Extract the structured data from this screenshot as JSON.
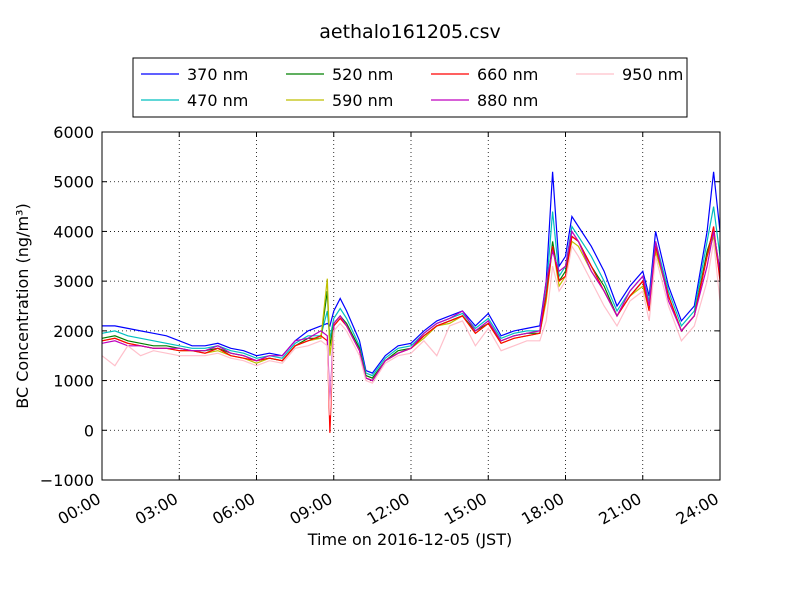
{
  "chart_data": {
    "type": "line",
    "title": "aethalo161205.csv",
    "xlabel": "Time on 2016-12-05 (JST)",
    "ylabel": "BC Concentration (ng/m³)",
    "x": [
      0,
      0.5,
      1,
      1.5,
      2,
      2.5,
      3,
      3.5,
      4,
      4.5,
      5,
      5.5,
      6,
      6.5,
      7,
      7.5,
      8,
      8.5,
      8.75,
      8.85,
      9,
      9.25,
      9.5,
      10,
      10.25,
      10.5,
      11,
      11.5,
      12,
      12.5,
      13,
      13.5,
      14,
      14.5,
      15,
      15.5,
      16,
      16.5,
      17,
      17.25,
      17.5,
      17.75,
      18,
      18.25,
      18.5,
      19,
      19.5,
      20,
      20.5,
      21,
      21.25,
      21.5,
      22,
      22.5,
      23,
      23.5,
      23.75,
      24
    ],
    "xlim": [
      0,
      24
    ],
    "xticks": [
      {
        "value": 0,
        "label": "00:00"
      },
      {
        "value": 3,
        "label": "03:00"
      },
      {
        "value": 6,
        "label": "06:00"
      },
      {
        "value": 9,
        "label": "09:00"
      },
      {
        "value": 12,
        "label": "12:00"
      },
      {
        "value": 15,
        "label": "15:00"
      },
      {
        "value": 18,
        "label": "18:00"
      },
      {
        "value": 21,
        "label": "21:00"
      },
      {
        "value": 24,
        "label": "24:00"
      }
    ],
    "ylim": [
      -1000,
      6000
    ],
    "yticks": [
      {
        "value": -1000,
        "label": "−1000"
      },
      0,
      1000,
      2000,
      3000,
      4000,
      5000,
      6000
    ],
    "grid": true,
    "legend": "upper center",
    "series": [
      {
        "name": "370 nm",
        "color": "#0000ff",
        "values": [
          2100,
          2100,
          2050,
          2000,
          1950,
          1900,
          1800,
          1700,
          1700,
          1750,
          1650,
          1600,
          1500,
          1550,
          1500,
          1800,
          2000,
          2100,
          2150,
          2100,
          2400,
          2650,
          2400,
          1800,
          1200,
          1150,
          1500,
          1700,
          1750,
          2000,
          2200,
          2300,
          2400,
          2100,
          2350,
          1900,
          2000,
          2050,
          2100,
          3000,
          5200,
          3300,
          3500,
          4300,
          4100,
          3700,
          3200,
          2500,
          2900,
          3200,
          2700,
          4000,
          2900,
          2200,
          2500,
          4000,
          5200,
          4000
        ]
      },
      {
        "name": "470 nm",
        "color": "#00bfbf",
        "values": [
          1950,
          2000,
          1900,
          1850,
          1800,
          1750,
          1700,
          1650,
          1650,
          1700,
          1600,
          1550,
          1450,
          1500,
          1450,
          1750,
          1900,
          1900,
          2400,
          1850,
          2250,
          2450,
          2250,
          1700,
          1150,
          1100,
          1450,
          1650,
          1700,
          1950,
          2150,
          2250,
          2350,
          2050,
          2250,
          1850,
          1950,
          2000,
          2000,
          2800,
          4400,
          3100,
          3300,
          4100,
          3900,
          3500,
          3000,
          2400,
          2800,
          3100,
          2600,
          3800,
          2800,
          2100,
          2400,
          3800,
          4500,
          3500
        ]
      },
      {
        "name": "520 nm",
        "color": "#008000",
        "values": [
          1850,
          1900,
          1800,
          1750,
          1700,
          1700,
          1650,
          1600,
          1600,
          1650,
          1550,
          1500,
          1400,
          1450,
          1400,
          1700,
          1850,
          1850,
          2800,
          1700,
          2150,
          2300,
          2150,
          1650,
          1100,
          1050,
          1400,
          1600,
          1650,
          1900,
          2100,
          2200,
          2300,
          2000,
          2150,
          1800,
          1900,
          1950,
          1950,
          2700,
          3800,
          3000,
          3200,
          3900,
          3800,
          3300,
          2900,
          2300,
          2700,
          3000,
          2500,
          3700,
          2700,
          2000,
          2300,
          3600,
          4000,
          3200
        ]
      },
      {
        "name": "590 nm",
        "color": "#bfbf00",
        "values": [
          1800,
          1850,
          1750,
          1700,
          1650,
          1650,
          1600,
          1600,
          1550,
          1600,
          1500,
          1450,
          1350,
          1450,
          1400,
          1700,
          1800,
          1850,
          3050,
          1500,
          2100,
          2250,
          2100,
          1600,
          1050,
          1000,
          1400,
          1550,
          1650,
          1850,
          2100,
          2150,
          2300,
          1950,
          2150,
          1750,
          1850,
          1900,
          1950,
          2600,
          3700,
          2900,
          3100,
          3800,
          3700,
          3200,
          2800,
          2300,
          2700,
          2900,
          2400,
          3600,
          2700,
          2000,
          2300,
          3500,
          3900,
          3100
        ]
      },
      {
        "name": "660 nm",
        "color": "#ff0000",
        "values": [
          1800,
          1850,
          1750,
          1700,
          1650,
          1650,
          1600,
          1600,
          1550,
          1650,
          1500,
          1450,
          1400,
          1450,
          1400,
          1700,
          1800,
          1900,
          1800,
          -50,
          2100,
          2250,
          2100,
          1600,
          1050,
          1000,
          1400,
          1550,
          1650,
          1900,
          2100,
          2200,
          2300,
          1950,
          2150,
          1750,
          1850,
          1900,
          1950,
          2700,
          3700,
          3000,
          3100,
          3900,
          3800,
          3300,
          2800,
          2300,
          2700,
          3000,
          2400,
          3700,
          2700,
          2000,
          2300,
          3500,
          4100,
          3000
        ]
      },
      {
        "name": "880 nm",
        "color": "#bf00bf",
        "values": [
          1750,
          1800,
          1700,
          1700,
          1650,
          1650,
          1650,
          1600,
          1600,
          1700,
          1550,
          1500,
          1400,
          1500,
          1500,
          1800,
          1850,
          2000,
          1900,
          500,
          2150,
          2300,
          2100,
          1600,
          1050,
          1000,
          1400,
          1550,
          1650,
          1950,
          2150,
          2250,
          2400,
          2000,
          2200,
          1800,
          1900,
          1950,
          2000,
          3000,
          3600,
          3200,
          3300,
          4000,
          3800,
          3200,
          2800,
          2300,
          2800,
          3100,
          2500,
          3800,
          2600,
          2000,
          2300,
          3300,
          4000,
          3200
        ]
      },
      {
        "name": "950 nm",
        "color": "#ffc0cb",
        "values": [
          1500,
          1300,
          1700,
          1500,
          1600,
          1550,
          1500,
          1500,
          1500,
          1550,
          1450,
          1400,
          1300,
          1400,
          1350,
          1650,
          1700,
          1800,
          1700,
          300,
          2000,
          2150,
          2000,
          1500,
          1000,
          950,
          1350,
          1500,
          1550,
          1800,
          1500,
          2100,
          2200,
          1700,
          2050,
          1600,
          1700,
          1800,
          1800,
          2200,
          3300,
          2800,
          3000,
          3700,
          3500,
          3000,
          2500,
          2100,
          2600,
          2800,
          2200,
          3500,
          2500,
          1800,
          2100,
          3000,
          3800,
          2600
        ]
      }
    ]
  }
}
